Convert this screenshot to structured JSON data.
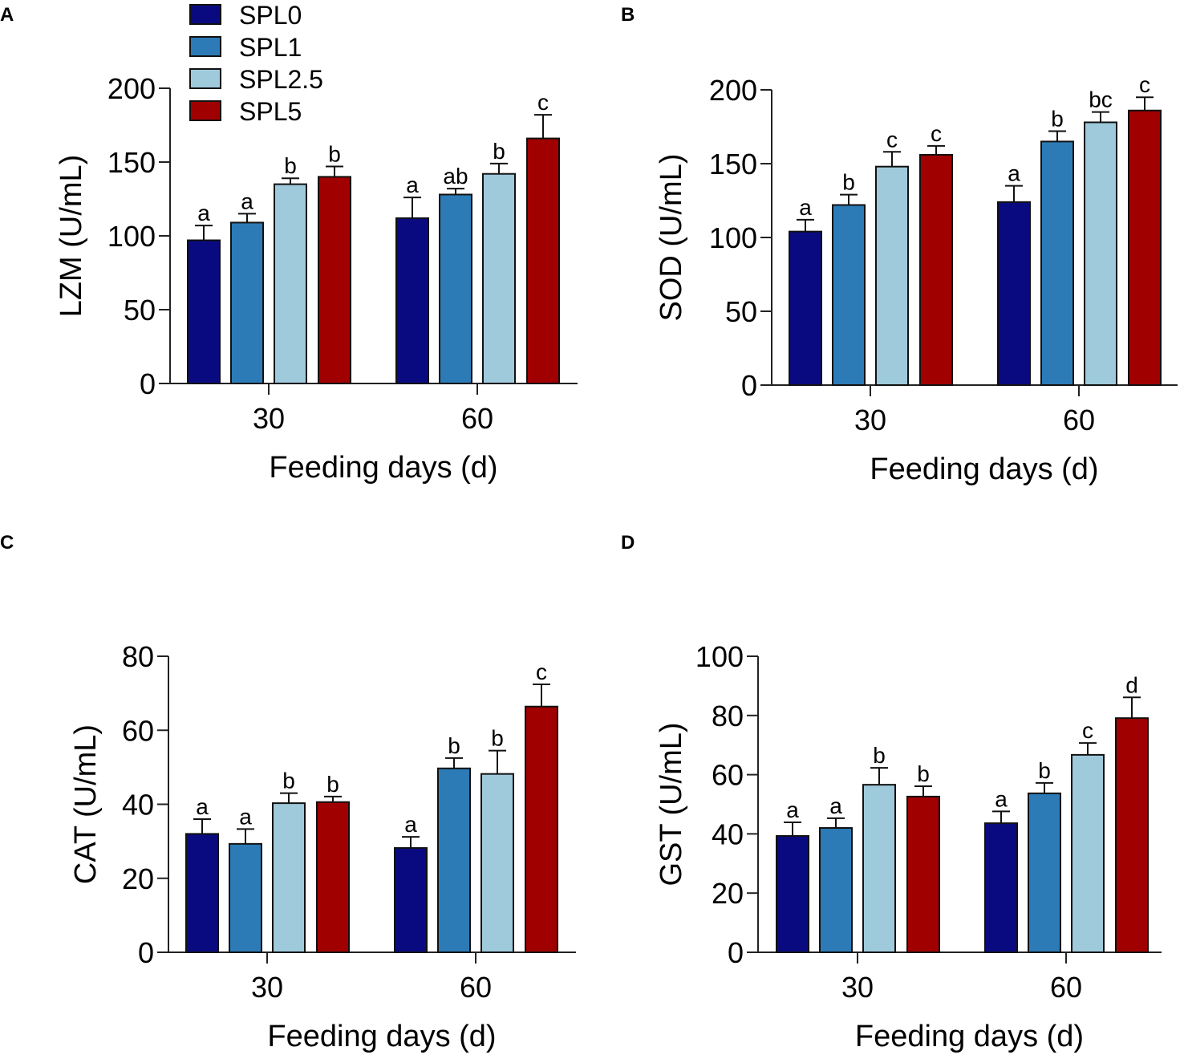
{
  "legend": [
    {
      "label": "SPL0",
      "color": "#0a0a80"
    },
    {
      "label": "SPL1",
      "color": "#2c7bb6"
    },
    {
      "label": "SPL2.5",
      "color": "#9ecadb"
    },
    {
      "label": "SPL5",
      "color": "#a00000"
    }
  ],
  "chart_data": [
    {
      "panel": "A",
      "type": "bar",
      "ylabel": "LZM (U/mL)",
      "xlabel": "Feeding days (d)",
      "categories": [
        "30",
        "60"
      ],
      "ylim": [
        0,
        200
      ],
      "yticks": [
        0,
        50,
        100,
        150,
        200
      ],
      "series": [
        {
          "name": "SPL0",
          "values": [
            97,
            112
          ],
          "errors": [
            10,
            14
          ],
          "letters": [
            "a",
            "a"
          ]
        },
        {
          "name": "SPL1",
          "values": [
            109,
            128
          ],
          "errors": [
            6,
            4
          ],
          "letters": [
            "a",
            "ab"
          ]
        },
        {
          "name": "SPL2.5",
          "values": [
            135,
            142
          ],
          "errors": [
            4,
            7
          ],
          "letters": [
            "b",
            "b"
          ]
        },
        {
          "name": "SPL5",
          "values": [
            140,
            166
          ],
          "errors": [
            7,
            16
          ],
          "letters": [
            "b",
            "c"
          ]
        }
      ]
    },
    {
      "panel": "B",
      "type": "bar",
      "ylabel": "SOD (U/mL)",
      "xlabel": "Feeding days (d)",
      "categories": [
        "30",
        "60"
      ],
      "ylim": [
        0,
        200
      ],
      "yticks": [
        0,
        50,
        100,
        150,
        200
      ],
      "series": [
        {
          "name": "SPL0",
          "values": [
            104,
            124
          ],
          "errors": [
            8,
            11
          ],
          "letters": [
            "a",
            "a"
          ]
        },
        {
          "name": "SPL1",
          "values": [
            122,
            165
          ],
          "errors": [
            7,
            7
          ],
          "letters": [
            "b",
            "b"
          ]
        },
        {
          "name": "SPL2.5",
          "values": [
            148,
            178
          ],
          "errors": [
            10,
            7
          ],
          "letters": [
            "c",
            "bc"
          ]
        },
        {
          "name": "SPL5",
          "values": [
            156,
            186
          ],
          "errors": [
            6,
            9
          ],
          "letters": [
            "c",
            "c"
          ]
        }
      ]
    },
    {
      "panel": "C",
      "type": "bar",
      "ylabel": "CAT (U/mL)",
      "xlabel": "Feeding days (d)",
      "categories": [
        "30",
        "60"
      ],
      "ylim": [
        0,
        80
      ],
      "yticks": [
        0,
        20,
        40,
        60,
        80
      ],
      "series": [
        {
          "name": "SPL0",
          "values": [
            32,
            28.2
          ],
          "errors": [
            4,
            3
          ],
          "letters": [
            "a",
            "a"
          ]
        },
        {
          "name": "SPL1",
          "values": [
            29.3,
            49.7
          ],
          "errors": [
            4,
            2.8
          ],
          "letters": [
            "a",
            "b"
          ]
        },
        {
          "name": "SPL2.5",
          "values": [
            40.3,
            48.2
          ],
          "errors": [
            2.7,
            6.3
          ],
          "letters": [
            "b",
            "b"
          ]
        },
        {
          "name": "SPL5",
          "values": [
            40.6,
            66.4
          ],
          "errors": [
            1.5,
            6
          ],
          "letters": [
            "b",
            "c"
          ]
        }
      ]
    },
    {
      "panel": "D",
      "type": "bar",
      "ylabel": "GST (U/mL)",
      "xlabel": "Feeding days (d)",
      "categories": [
        "30",
        "60"
      ],
      "ylim": [
        0,
        100
      ],
      "yticks": [
        0,
        20,
        40,
        60,
        80,
        100
      ],
      "series": [
        {
          "name": "SPL0",
          "values": [
            39.3,
            43.6
          ],
          "errors": [
            4.6,
            4
          ],
          "letters": [
            "a",
            "a"
          ]
        },
        {
          "name": "SPL1",
          "values": [
            42,
            53.7
          ],
          "errors": [
            3.3,
            3.5
          ],
          "letters": [
            "a",
            "b"
          ]
        },
        {
          "name": "SPL2.5",
          "values": [
            56.6,
            66.7
          ],
          "errors": [
            5.7,
            4
          ],
          "letters": [
            "b",
            "c"
          ]
        },
        {
          "name": "SPL5",
          "values": [
            52.6,
            79.1
          ],
          "errors": [
            3.5,
            7
          ],
          "letters": [
            "b",
            "d"
          ]
        }
      ]
    }
  ]
}
